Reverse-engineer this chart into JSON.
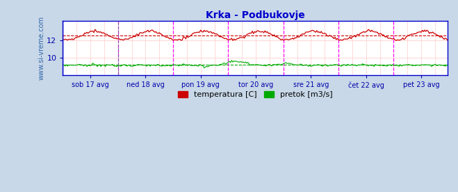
{
  "title": "Krka - Podbukovje",
  "title_color": "#0000cc",
  "fig_bg_color": "#c8d8e8",
  "plot_bg_color": "#ffffff",
  "x_labels": [
    "sob 17 avg",
    "ned 18 avg",
    "pon 19 avg",
    "tor 20 avg",
    "sre 21 avg",
    "čet 22 avg",
    "pet 23 avg"
  ],
  "y_ticks": [
    10,
    12
  ],
  "y_min": 8.0,
  "y_max": 14.2,
  "h_grid_color": "#ffcccc",
  "h_grid_color2": "#ccffcc",
  "v_grid_color": "#ffcccc",
  "vline_major_color": "#ff00ff",
  "vline_first_color": "#666688",
  "temp_color": "#cc0000",
  "flow_color": "#00aa00",
  "axis_color": "#0000cc",
  "tick_label_color": "#0000aa",
  "n_points": 336,
  "legend_temp": "temperatura [C]",
  "legend_flow": "pretok [m3/s]",
  "ylabel_text": "www.si-vreme.com",
  "ylabel_color": "#3366aa"
}
